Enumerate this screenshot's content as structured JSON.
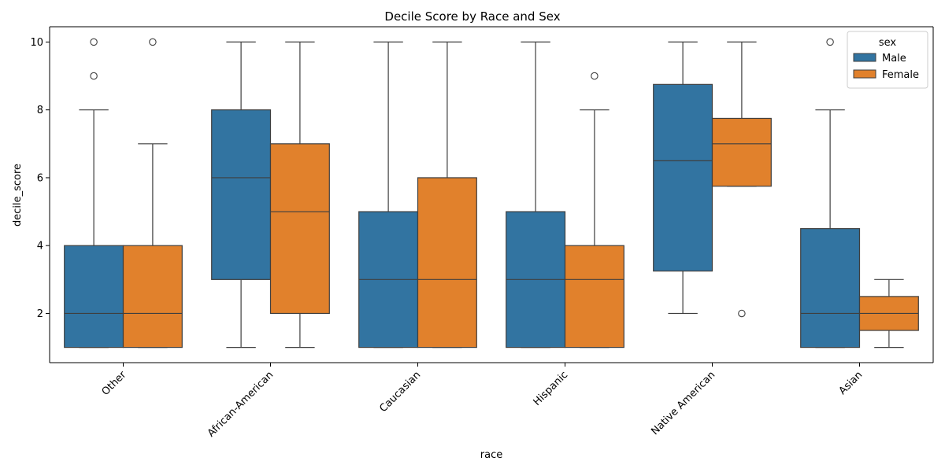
{
  "chart_data": {
    "type": "boxplot",
    "title": "Decile Score by Race and Sex",
    "xlabel": "race",
    "ylabel": "decile_score",
    "categories": [
      "Other",
      "African-American",
      "Caucasian",
      "Hispanic",
      "Native American",
      "Asian"
    ],
    "y_ticks": [
      "2",
      "4",
      "6",
      "8",
      "10"
    ],
    "ylim": [
      0.55,
      10.45
    ],
    "grid": false,
    "legend": {
      "title": "sex",
      "placement": "top-right",
      "entries": [
        "Male",
        "Female"
      ]
    },
    "series": [
      {
        "name": "Male",
        "color": "#3274a1",
        "boxes": [
          {
            "whisker_low": 1,
            "q1": 1,
            "median": 2,
            "q3": 4,
            "whisker_high": 8,
            "outliers": [
              9,
              10
            ]
          },
          {
            "whisker_low": 1,
            "q1": 3,
            "median": 6,
            "q3": 8,
            "whisker_high": 10,
            "outliers": []
          },
          {
            "whisker_low": 1,
            "q1": 1,
            "median": 3,
            "q3": 5,
            "whisker_high": 10,
            "outliers": []
          },
          {
            "whisker_low": 1,
            "q1": 1,
            "median": 3,
            "q3": 5,
            "whisker_high": 10,
            "outliers": []
          },
          {
            "whisker_low": 2,
            "q1": 3.25,
            "median": 6.5,
            "q3": 8.75,
            "whisker_high": 10,
            "outliers": []
          },
          {
            "whisker_low": 1,
            "q1": 1,
            "median": 2,
            "q3": 4.5,
            "whisker_high": 8,
            "outliers": [
              10
            ]
          }
        ]
      },
      {
        "name": "Female",
        "color": "#e1812c",
        "boxes": [
          {
            "whisker_low": 1,
            "q1": 1,
            "median": 2,
            "q3": 4,
            "whisker_high": 7,
            "outliers": [
              10
            ]
          },
          {
            "whisker_low": 1,
            "q1": 2,
            "median": 5,
            "q3": 7,
            "whisker_high": 10,
            "outliers": []
          },
          {
            "whisker_low": 1,
            "q1": 1,
            "median": 3,
            "q3": 6,
            "whisker_high": 10,
            "outliers": []
          },
          {
            "whisker_low": 1,
            "q1": 1,
            "median": 3,
            "q3": 4,
            "whisker_high": 8,
            "outliers": [
              9
            ]
          },
          {
            "whisker_low": 5.75,
            "q1": 5.75,
            "median": 7,
            "q3": 7.75,
            "whisker_high": 10,
            "outliers": [
              2
            ]
          },
          {
            "whisker_low": 1,
            "q1": 1.5,
            "median": 2,
            "q3": 2.5,
            "whisker_high": 3,
            "outliers": []
          }
        ]
      }
    ]
  }
}
